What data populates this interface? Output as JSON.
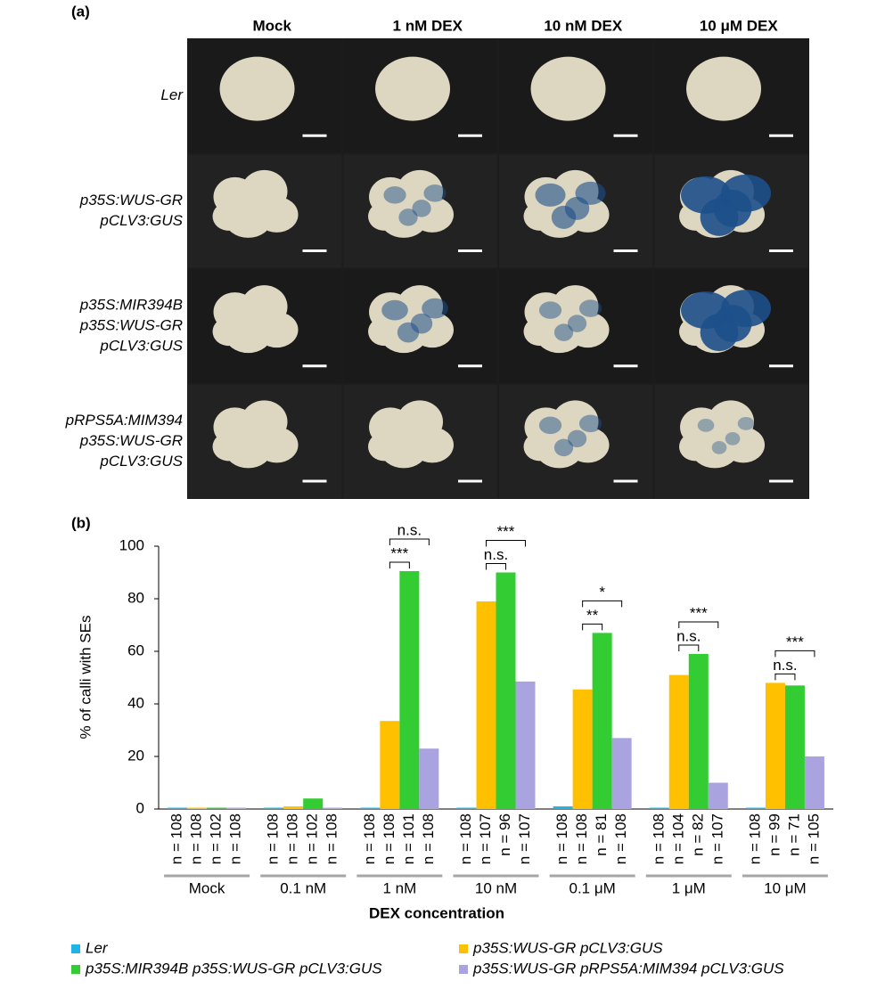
{
  "panel_a": {
    "label": "(a)",
    "columns": [
      "Mock",
      "1 nM DEX",
      "10 nM DEX",
      "10 μM DEX"
    ],
    "rows": [
      [
        "Ler"
      ],
      [
        "p35S:WUS-GR",
        "pCLV3:GUS"
      ],
      [
        "p35S:MIR394B",
        "p35S:WUS-GR",
        "pCLV3:GUS"
      ],
      [
        "pRPS5A:MIM394",
        "p35S:WUS-GR",
        "pCLV3:GUS"
      ]
    ]
  },
  "chart_data": {
    "type": "bar",
    "label": "(b)",
    "y_label": "% of calli with SEs",
    "x_label": "DEX concentration",
    "categories": [
      "Mock",
      "0.1 nM",
      "1 nM",
      "10 nM",
      "0.1 μM",
      "1 μM",
      "10 μM"
    ],
    "ylim": [
      0,
      100
    ],
    "yticks": [
      0,
      20,
      40,
      60,
      80,
      100
    ],
    "grid": false,
    "series": [
      {
        "name": "Ler",
        "color": "#1fb4e8",
        "values": [
          0.5,
          0.5,
          0.5,
          0.5,
          1,
          0.5,
          0.5
        ],
        "n_labels": [
          "n = 108",
          "n = 108",
          "n = 108",
          "n = 108",
          "n = 108",
          "n = 108",
          "n = 108"
        ]
      },
      {
        "name": "p35S:WUS-GR pCLV3:GUS",
        "color": "#ffc000",
        "values": [
          0.5,
          1,
          33.5,
          79,
          45.5,
          51,
          48
        ],
        "n_labels": [
          "n = 108",
          "n = 108",
          "n = 108",
          "n = 107",
          "n = 108",
          "n = 104",
          "n = 99"
        ]
      },
      {
        "name": "p35S:MIR394B p35S:WUS-GR pCLV3:GUS",
        "color": "#33cc33",
        "values": [
          0.5,
          4,
          90.5,
          90,
          67,
          59,
          47
        ],
        "n_labels": [
          "n = 102",
          "n = 102",
          "n = 101",
          "n = 96",
          "n = 81",
          "n = 82",
          "n = 71"
        ]
      },
      {
        "name": "p35S:WUS-GR pRPS5A:MIM394 pCLV3:GUS",
        "color": "#a9a4e0",
        "values": [
          0.5,
          0.5,
          23,
          48.5,
          27,
          10,
          20
        ],
        "n_labels": [
          "n = 108",
          "n = 108",
          "n = 108",
          "n = 107",
          "n = 108",
          "n = 107",
          "n = 105"
        ]
      }
    ],
    "annotations": [
      "***",
      "n.s.",
      "n.s.",
      "***",
      "**",
      "*",
      "n.s.",
      "***",
      "n.s.",
      "***"
    ]
  }
}
